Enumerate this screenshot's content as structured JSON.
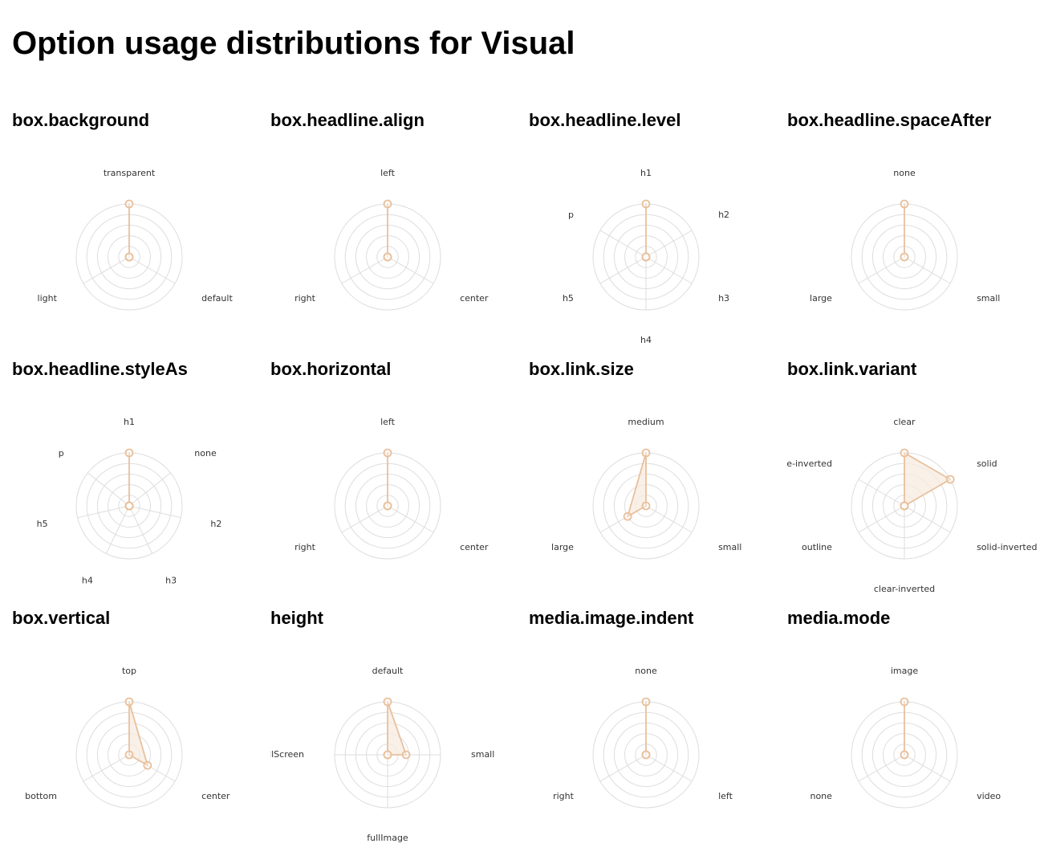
{
  "title": "Option usage distributions for Visual",
  "colors": {
    "accent": "#e8c09c",
    "fill": "#f7ebe0",
    "grid": "#dddddd",
    "text": "#333333"
  },
  "chart_data": [
    {
      "type": "radar",
      "title": "box.background",
      "categories": [
        "transparent",
        "default",
        "light"
      ],
      "values": [
        1,
        0,
        0
      ],
      "rlim": [
        0,
        1
      ]
    },
    {
      "type": "radar",
      "title": "box.headline.align",
      "categories": [
        "left",
        "center",
        "right"
      ],
      "values": [
        1,
        0,
        0
      ],
      "rlim": [
        0,
        1
      ]
    },
    {
      "type": "radar",
      "title": "box.headline.level",
      "categories": [
        "h1",
        "h2",
        "h3",
        "h4",
        "h5",
        "p"
      ],
      "values": [
        1,
        0,
        0,
        0,
        0,
        0
      ],
      "rlim": [
        0,
        1
      ]
    },
    {
      "type": "radar",
      "title": "box.headline.spaceAfter",
      "categories": [
        "none",
        "small",
        "large"
      ],
      "values": [
        1,
        0,
        0
      ],
      "rlim": [
        0,
        1
      ]
    },
    {
      "type": "radar",
      "title": "box.headline.styleAs",
      "categories": [
        "h1",
        "none",
        "h2",
        "h3",
        "h4",
        "h5",
        "p"
      ],
      "values": [
        1,
        0,
        0,
        0,
        0,
        0,
        0
      ],
      "rlim": [
        0,
        1
      ]
    },
    {
      "type": "radar",
      "title": "box.horizontal",
      "categories": [
        "left",
        "center",
        "right"
      ],
      "values": [
        1,
        0,
        0
      ],
      "rlim": [
        0,
        1
      ]
    },
    {
      "type": "radar",
      "title": "box.link.size",
      "categories": [
        "medium",
        "small",
        "large"
      ],
      "values": [
        1,
        0,
        0.4
      ],
      "rlim": [
        0,
        1
      ]
    },
    {
      "type": "radar",
      "title": "box.link.variant",
      "categories": [
        "clear",
        "solid",
        "solid-inverted",
        "clear-inverted",
        "outline",
        "one-inverted"
      ],
      "values": [
        1,
        1,
        0,
        0,
        0,
        0
      ],
      "rlim": [
        0,
        1
      ]
    },
    {
      "type": "radar",
      "title": "box.vertical",
      "categories": [
        "top",
        "center",
        "bottom"
      ],
      "values": [
        1,
        0.4,
        0
      ],
      "rlim": [
        0,
        1
      ]
    },
    {
      "type": "radar",
      "title": "height",
      "categories": [
        "default",
        "small",
        "fullImage",
        "fullScreen"
      ],
      "values": [
        1,
        0.35,
        0,
        0
      ],
      "rlim": [
        0,
        1
      ]
    },
    {
      "type": "radar",
      "title": "media.image.indent",
      "categories": [
        "none",
        "left",
        "right"
      ],
      "values": [
        1,
        0,
        0
      ],
      "rlim": [
        0,
        1
      ]
    },
    {
      "type": "radar",
      "title": "media.mode",
      "categories": [
        "image",
        "video",
        "none"
      ],
      "values": [
        1,
        0,
        0
      ],
      "rlim": [
        0,
        1
      ]
    }
  ]
}
